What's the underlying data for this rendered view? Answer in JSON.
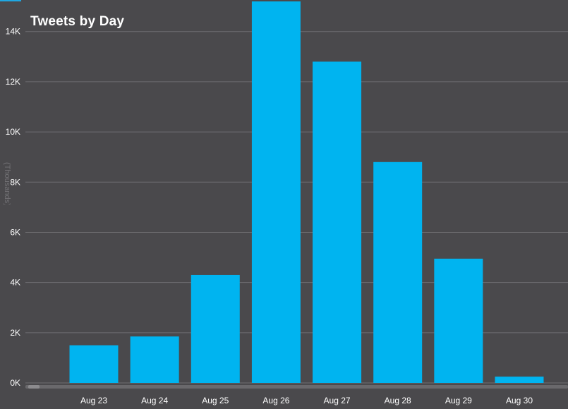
{
  "chart_data": {
    "type": "bar",
    "title": "Tweets by Day",
    "xlabel": "",
    "ylabel": "(Thousands)",
    "categories": [
      "Aug 23",
      "Aug 24",
      "Aug 25",
      "Aug 26",
      "Aug 27",
      "Aug 28",
      "Aug 29",
      "Aug 30"
    ],
    "series": [
      {
        "values": [
          1500,
          1850,
          4300,
          15200,
          12800,
          8800,
          4950,
          250
        ]
      }
    ],
    "yticks": [
      "0K",
      "2K",
      "4K",
      "6K",
      "8K",
      "10K",
      "12K",
      "14K"
    ],
    "ylim": [
      0,
      15200
    ],
    "grid": true,
    "legend": "none",
    "colors": {
      "background": "#4a494c",
      "bar": "#00b4f0",
      "grid": "#6e6d71",
      "text": "#ffffff"
    }
  }
}
